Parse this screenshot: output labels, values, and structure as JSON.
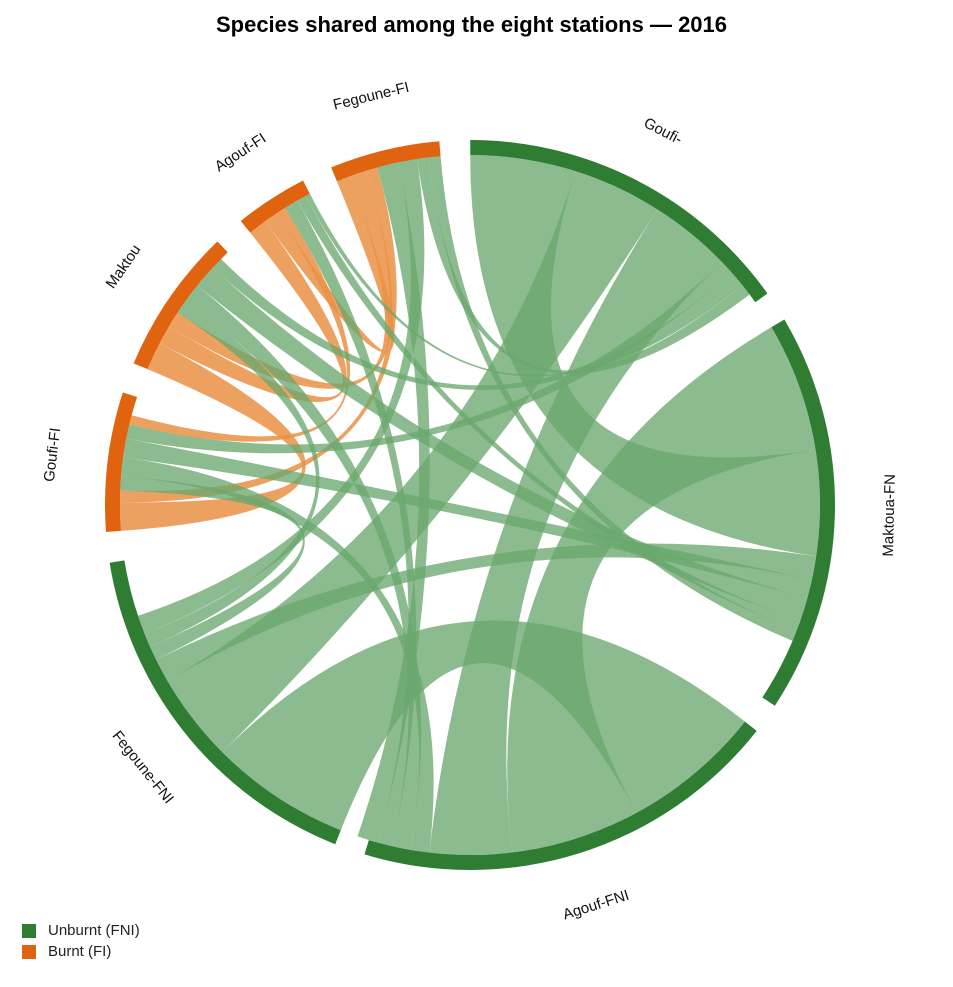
{
  "chart_data": {
    "type": "chord",
    "title": "Species shared among the eight stations — 2016",
    "legend": [
      {
        "name": "Unburnt (FNI)",
        "color": "#2e7d32"
      },
      {
        "name": "Burnt (FI)",
        "color": "#e0640f"
      }
    ],
    "legend_position": "bottom-left",
    "colors": {
      "unburnt": "#2e7d32",
      "unburnt_link": "#6aa86e",
      "burnt": "#e0640f",
      "burnt_link": "#ea9045"
    },
    "sectors": [
      {
        "id": "Goufi-FNI",
        "label": "Goufi-",
        "group": "unburnt",
        "size": 140
      },
      {
        "id": "Maktoua-FNI",
        "label": "Maktoua-FN",
        "group": "unburnt",
        "size": 164
      },
      {
        "id": "Agouf-FNI",
        "label": "Agouf-FNI",
        "group": "unburnt",
        "size": 176
      },
      {
        "id": "Fegoune-FNI",
        "label": "Fegoune-FNI",
        "group": "unburnt",
        "size": 152
      },
      {
        "id": "Goufi-FI",
        "label": "Goufi-FI",
        "group": "burnt",
        "size": 57
      },
      {
        "id": "Maktoua-FI",
        "label": "Maktou",
        "group": "burnt",
        "size": 60
      },
      {
        "id": "Agouf-FI",
        "label": "Agouf-FI",
        "group": "burnt",
        "size": 30
      },
      {
        "id": "Fegoune-FI",
        "label": "Fegoune-FI",
        "group": "burnt",
        "size": 45
      }
    ],
    "links": [
      {
        "source": "Fegoune-FNI",
        "target": "Agouf-FNI",
        "value": 60
      },
      {
        "source": "Agouf-FNI",
        "target": "Maktoua-FNI",
        "value": 55
      },
      {
        "source": "Maktoua-FNI",
        "target": "Goufi-FNI",
        "value": 45
      },
      {
        "source": "Fegoune-FNI",
        "target": "Goufi-FNI",
        "value": 38
      },
      {
        "source": "Agouf-FNI",
        "target": "Goufi-FNI",
        "value": 35
      },
      {
        "source": "Fegoune-FNI",
        "target": "Maktoua-FNI",
        "value": 10
      },
      {
        "source": "Goufi-FI",
        "target": "Maktoua-FI",
        "value": 12
      },
      {
        "source": "Maktoua-FI",
        "target": "Agouf-FI",
        "value": 8
      },
      {
        "source": "Agouf-FI",
        "target": "Fegoune-FI",
        "value": 6
      },
      {
        "source": "Maktoua-FI",
        "target": "Fegoune-FI",
        "value": 7
      },
      {
        "source": "Goufi-FI",
        "target": "Fegoune-FI",
        "value": 5
      },
      {
        "source": "Goufi-FI",
        "target": "Fegoune-FNI",
        "value": 6
      },
      {
        "source": "Goufi-FI",
        "target": "Agouf-FNI",
        "value": 8
      },
      {
        "source": "Goufi-FI",
        "target": "Maktoua-FNI",
        "value": 8
      },
      {
        "source": "Goufi-FI",
        "target": "Goufi-FNI",
        "value": 6
      },
      {
        "source": "Goufi-FI",
        "target": "Agouf-FI",
        "value": 4
      },
      {
        "source": "Maktoua-FI",
        "target": "Fegoune-FNI",
        "value": 6
      },
      {
        "source": "Maktoua-FI",
        "target": "Agouf-FNI",
        "value": 8
      },
      {
        "source": "Maktoua-FI",
        "target": "Maktoua-FNI",
        "value": 10
      },
      {
        "source": "Maktoua-FI",
        "target": "Goufi-FNI",
        "value": 5
      },
      {
        "source": "Agouf-FI",
        "target": "Agouf-FNI",
        "value": 6
      },
      {
        "source": "Agouf-FI",
        "target": "Maktoua-FNI",
        "value": 4
      },
      {
        "source": "Agouf-FI",
        "target": "Goufi-FNI",
        "value": 2
      },
      {
        "source": "Fegoune-FI",
        "target": "Agouf-FNI",
        "value": 9
      },
      {
        "source": "Fegoune-FI",
        "target": "Fegoune-FNI",
        "value": 8
      },
      {
        "source": "Fegoune-FI",
        "target": "Goufi-FNI",
        "value": 5
      },
      {
        "source": "Fegoune-FI",
        "target": "Maktoua-FNI",
        "value": 5
      }
    ]
  }
}
